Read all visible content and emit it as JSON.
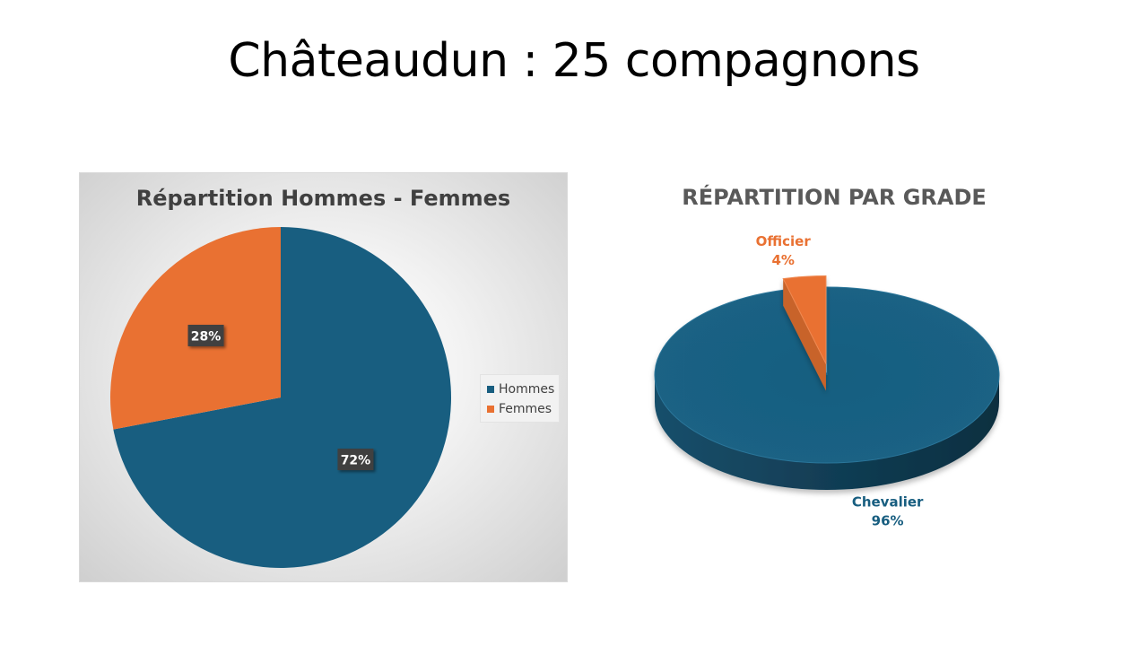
{
  "slide": {
    "title": "Châteaudun : 25 compagnons"
  },
  "chart_data": [
    {
      "type": "pie",
      "title": "Répartition Hommes - Femmes",
      "categories": [
        "Hommes",
        "Femmes"
      ],
      "values": [
        72,
        28
      ],
      "value_labels": [
        "72%",
        "28%"
      ],
      "colors": [
        "#185E80",
        "#E97132"
      ],
      "legend_position": "right",
      "data_label_style": "dark-box"
    },
    {
      "type": "pie",
      "style": "3d-exploded",
      "title": "RÉPARTITION PAR GRADE",
      "categories": [
        "Chevalier",
        "Officier"
      ],
      "values": [
        96,
        4
      ],
      "value_labels": [
        "96%",
        "4%"
      ],
      "colors": [
        "#185E80",
        "#E97132"
      ],
      "legend_position": "none"
    }
  ]
}
